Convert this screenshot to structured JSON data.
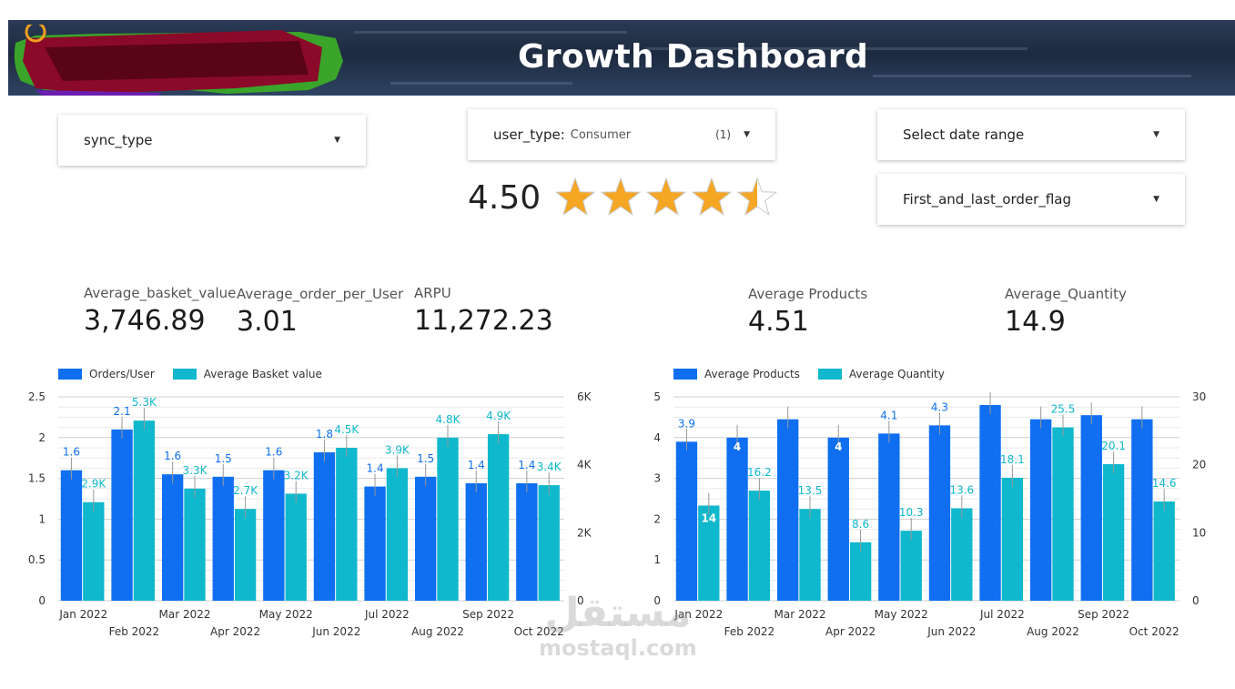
{
  "header": {
    "title": "Growth Dashboard"
  },
  "filters": {
    "sync_type": {
      "label": "sync_type"
    },
    "user_type": {
      "label": "user_type:",
      "value": "Consumer",
      "count": "(1)"
    },
    "date_range": {
      "label": "Select date range"
    },
    "order_flag": {
      "label": "First_and_last_order_flag"
    }
  },
  "rating": {
    "value": "4.50",
    "stars": 4.5,
    "max": 5
  },
  "metrics": [
    {
      "label": "Average_basket_value",
      "value": "3,746.89"
    },
    {
      "label": "Average_order_per_User",
      "value": "3.01"
    },
    {
      "label": "ARPU",
      "value": "11,272.23"
    },
    {
      "label": "Average Products",
      "value": "4.51"
    },
    {
      "label": "Average_Quantity",
      "value": "14.9"
    }
  ],
  "colors": {
    "primary": "#0f6ff0",
    "secondary": "#0fb8cc"
  },
  "watermark": {
    "arabic": "مستقل",
    "latin": "mostaql.com"
  },
  "chart_data": [
    {
      "type": "bar",
      "categories": [
        "Jan 2022",
        "Feb 2022",
        "Mar 2022",
        "Apr 2022",
        "May 2022",
        "Jun 2022",
        "Jul 2022",
        "Aug 2022",
        "Sep 2022",
        "Oct 2022"
      ],
      "series": [
        {
          "name": "Orders/User",
          "axis": "left",
          "values": [
            1.6,
            2.1,
            1.55,
            1.52,
            1.6,
            1.82,
            1.4,
            1.52,
            1.44,
            1.44
          ],
          "labels": [
            "1.6",
            "2.1",
            "1.6",
            "1.5",
            "1.6",
            "1.8",
            "1.4",
            "1.5",
            "1.4",
            "1.4"
          ]
        },
        {
          "name": "Average Basket value",
          "axis": "right",
          "values": [
            2900,
            5300,
            3300,
            2700,
            3150,
            4500,
            3900,
            4800,
            4900,
            3400
          ],
          "labels": [
            "2.9K",
            "5.3K",
            "3.3K",
            "2.7K",
            "3.2K",
            "4.5K",
            "3.9K",
            "4.8K",
            "4.9K",
            "3.4K"
          ]
        }
      ],
      "left_axis": {
        "ylim": [
          0,
          2.5
        ],
        "ticks": [
          "0",
          "0.5",
          "1",
          "1.5",
          "2",
          "2.5"
        ]
      },
      "right_axis": {
        "ylim": [
          0,
          6000
        ],
        "ticks": [
          "0",
          "2K",
          "4K",
          "6K"
        ]
      }
    },
    {
      "type": "bar",
      "categories": [
        "Jan 2022",
        "Feb 2022",
        "Mar 2022",
        "Apr 2022",
        "May 2022",
        "Jun 2022",
        "Jul 2022",
        "Aug 2022",
        "Sep 2022",
        "Oct 2022"
      ],
      "series": [
        {
          "name": "Average Products",
          "axis": "left",
          "values": [
            3.9,
            4,
            4.45,
            4,
            4.1,
            4.3,
            4.8,
            4.45,
            4.55,
            4.45
          ],
          "labels": [
            "3.9",
            "4",
            "",
            "4",
            "4.1",
            "4.3",
            "",
            "",
            "",
            ""
          ]
        },
        {
          "name": "Average Quantity",
          "axis": "right",
          "values": [
            14,
            16.2,
            13.5,
            8.6,
            10.3,
            13.6,
            18.1,
            25.5,
            20.1,
            14.6
          ],
          "labels": [
            "14",
            "16.2",
            "13.5",
            "8.6",
            "10.3",
            "13.6",
            "18.1",
            "25.5",
            "20.1",
            "14.6"
          ]
        }
      ],
      "left_axis": {
        "ylim": [
          0,
          5
        ],
        "ticks": [
          "0",
          "1",
          "2",
          "3",
          "4",
          "5"
        ]
      },
      "right_axis": {
        "ylim": [
          0,
          30
        ],
        "ticks": [
          "0",
          "10",
          "20",
          "30"
        ]
      }
    }
  ]
}
